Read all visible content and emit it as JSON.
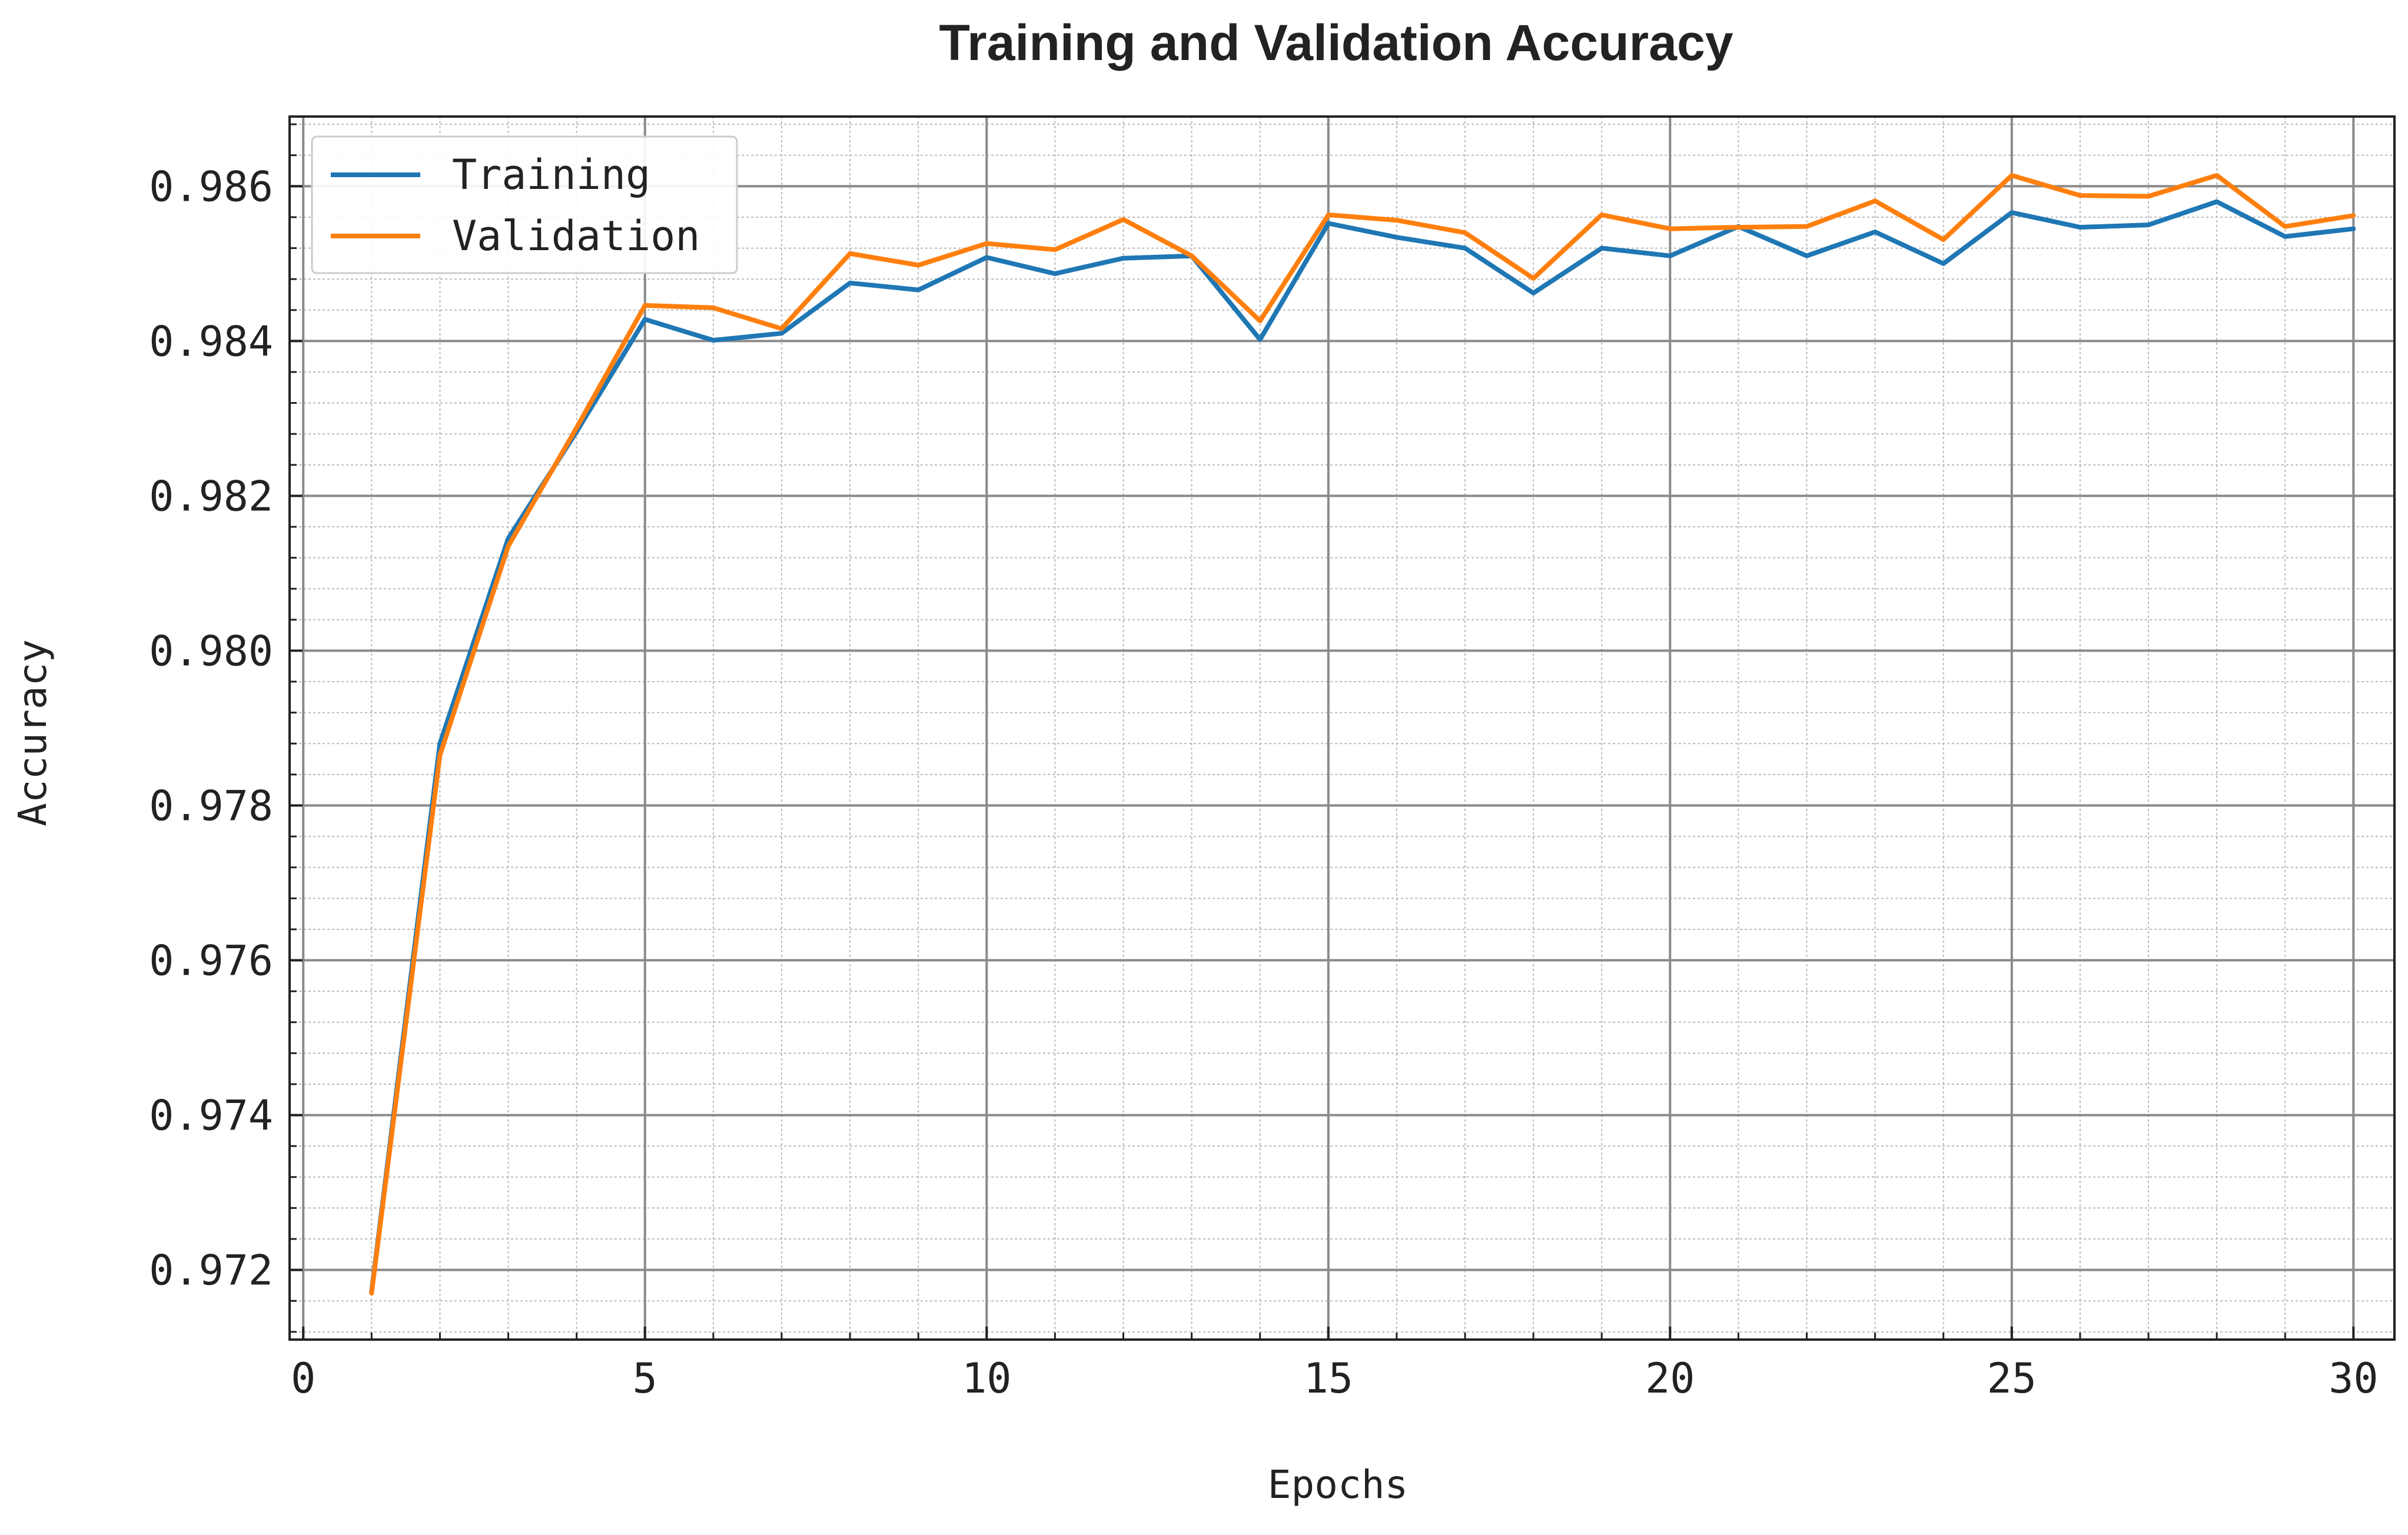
{
  "chart_data": {
    "type": "line",
    "title": "Training and Validation Accuracy",
    "xlabel": "Epochs",
    "ylabel": "Accuracy",
    "xlim": [
      -0.2,
      30.6
    ],
    "ylim": [
      0.9711,
      0.9869
    ],
    "x_ticks": [
      0,
      5,
      10,
      15,
      20,
      25,
      30
    ],
    "x_tick_labels": [
      "0",
      "5",
      "10",
      "15",
      "20",
      "25",
      "30"
    ],
    "y_ticks": [
      0.972,
      0.974,
      0.976,
      0.978,
      0.98,
      0.982,
      0.984,
      0.986
    ],
    "y_tick_labels": [
      "0.972",
      "0.974",
      "0.976",
      "0.978",
      "0.980",
      "0.982",
      "0.984",
      "0.986"
    ],
    "grid": true,
    "minor_grid": true,
    "legend_position": "top-left",
    "x": [
      1,
      2,
      3,
      4,
      5,
      6,
      7,
      8,
      9,
      10,
      11,
      12,
      13,
      14,
      15,
      16,
      17,
      18,
      19,
      20,
      21,
      22,
      23,
      24,
      25,
      26,
      27,
      28,
      29,
      30
    ],
    "series": [
      {
        "name": "Training",
        "color": "#1f77b4",
        "values": [
          0.97172,
          0.9788,
          0.98145,
          0.98283,
          0.98428,
          0.98401,
          0.9841,
          0.98475,
          0.98466,
          0.98508,
          0.98487,
          0.98507,
          0.9851,
          0.98402,
          0.98552,
          0.98534,
          0.9852,
          0.98462,
          0.9852,
          0.9851,
          0.98548,
          0.9851,
          0.98541,
          0.985,
          0.98566,
          0.98547,
          0.9855,
          0.9858,
          0.98535,
          0.98545
        ]
      },
      {
        "name": "Validation",
        "color": "#ff7f0e",
        "values": [
          0.9717,
          0.97865,
          0.98135,
          0.98288,
          0.98446,
          0.98443,
          0.98416,
          0.98513,
          0.98498,
          0.98526,
          0.98518,
          0.98557,
          0.9851,
          0.98426,
          0.98563,
          0.98556,
          0.9854,
          0.98481,
          0.98563,
          0.98545,
          0.98547,
          0.98548,
          0.98581,
          0.98531,
          0.98614,
          0.98588,
          0.98587,
          0.98614,
          0.98548,
          0.98562
        ]
      }
    ]
  }
}
